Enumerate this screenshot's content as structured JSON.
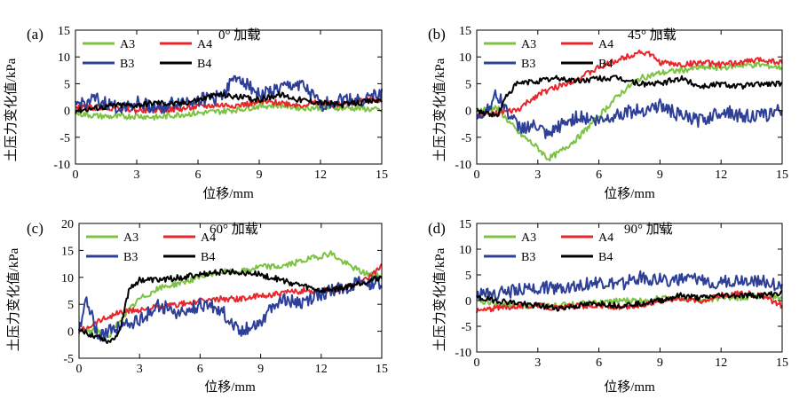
{
  "chart_data": [
    {
      "panel_label": "(a)",
      "title": "0° 加载",
      "type": "line",
      "xlabel": "位移/mm",
      "ylabel": "土压力变化值/kPa",
      "xlim": [
        0,
        15
      ],
      "ylim": [
        -10,
        15
      ],
      "xticks": [
        "0",
        "3",
        "6",
        "9",
        "12",
        "15"
      ],
      "yticks": [
        "-10",
        "-5",
        "0",
        "5",
        "10",
        "15"
      ],
      "legend_columns": 2,
      "grid": false,
      "series": [
        {
          "name": "A3",
          "color": "#7dc243",
          "x": [
            0,
            1,
            2,
            3,
            4,
            5,
            6,
            7,
            8,
            9,
            10,
            11,
            12,
            13,
            14,
            15
          ],
          "y": [
            -0.5,
            -1,
            -1.2,
            -1,
            -1.3,
            -0.8,
            -0.5,
            -0.2,
            0.2,
            0.8,
            1,
            0.5,
            0.5,
            0.5,
            0.4,
            0
          ]
        },
        {
          "name": "A4",
          "color": "#e8262b",
          "x": [
            0,
            1,
            2,
            3,
            4,
            5,
            6,
            7,
            8,
            9,
            10,
            11,
            12,
            13,
            14,
            15
          ],
          "y": [
            0.5,
            0.6,
            0.5,
            0,
            0.2,
            0.2,
            0.7,
            1,
            1,
            1.5,
            1.5,
            1,
            1.5,
            1,
            2,
            2
          ]
        },
        {
          "name": "B3",
          "color": "#2d3f97",
          "x": [
            0,
            1,
            2,
            3,
            4,
            5,
            6,
            7,
            8,
            9,
            10,
            11,
            12,
            13,
            14,
            15
          ],
          "y": [
            1,
            2,
            0.5,
            1.5,
            0.5,
            1.5,
            2,
            2.5,
            6.5,
            3,
            4,
            5,
            1,
            2,
            2,
            3
          ]
        },
        {
          "name": "B4",
          "color": "#000000",
          "x": [
            0,
            1,
            2,
            3,
            4,
            5,
            6,
            7,
            8,
            9,
            10,
            11,
            12,
            13,
            14,
            15
          ],
          "y": [
            0,
            0.5,
            1,
            1,
            1.5,
            1.2,
            2,
            3,
            2.5,
            2,
            3,
            2,
            1.5,
            1,
            1.5,
            2
          ]
        }
      ]
    },
    {
      "panel_label": "(b)",
      "title": "45° 加载",
      "type": "line",
      "xlabel": "位移/mm",
      "ylabel": "土压力变化值/kPa",
      "xlim": [
        0,
        15
      ],
      "ylim": [
        -10,
        15
      ],
      "xticks": [
        "0",
        "3",
        "6",
        "9",
        "12",
        "15"
      ],
      "yticks": [
        "-10",
        "-5",
        "0",
        "5",
        "10",
        "15"
      ],
      "legend_columns": 2,
      "grid": false,
      "series": [
        {
          "name": "A3",
          "color": "#7dc243",
          "x": [
            0,
            1,
            2,
            3,
            3.5,
            4,
            5,
            6,
            7,
            8,
            9,
            10,
            11,
            12,
            13,
            14,
            15
          ],
          "y": [
            0,
            0.5,
            -4,
            -7,
            -9,
            -8,
            -5,
            -1,
            3,
            6,
            7,
            7.5,
            8,
            8,
            8.5,
            8.5,
            8
          ]
        },
        {
          "name": "A4",
          "color": "#e8262b",
          "x": [
            0,
            1,
            2,
            3,
            4,
            5,
            6,
            7,
            8,
            8.5,
            9,
            10,
            11,
            12,
            13,
            14,
            15
          ],
          "y": [
            -1,
            -0.5,
            0,
            3,
            4.5,
            6,
            8,
            9.5,
            11,
            10.5,
            9,
            8.5,
            9,
            8.5,
            9,
            9.5,
            9
          ]
        },
        {
          "name": "B3",
          "color": "#2d3f97",
          "x": [
            0,
            1,
            2,
            3,
            3.5,
            4,
            5,
            6,
            7,
            8,
            9,
            10,
            11,
            12,
            13,
            14,
            15
          ],
          "y": [
            -2,
            3,
            -3,
            -3,
            -5,
            -3,
            -1,
            -2,
            -0.5,
            0,
            1,
            -1,
            -2,
            0,
            -1,
            -1,
            0
          ]
        },
        {
          "name": "B4",
          "color": "#000000",
          "x": [
            0,
            1,
            1.5,
            2,
            3,
            4,
            5,
            6,
            7,
            8,
            9,
            10,
            11,
            12,
            13,
            14,
            15
          ],
          "y": [
            0,
            -1,
            3,
            5,
            5.5,
            6,
            5.5,
            6,
            6,
            5,
            5,
            6,
            4.5,
            5,
            4.5,
            5,
            5
          ]
        }
      ]
    },
    {
      "panel_label": "(c)",
      "title": "60° 加载",
      "type": "line",
      "xlabel": "位移/mm",
      "ylabel": "土压力变化值/kPa",
      "xlim": [
        0,
        15
      ],
      "ylim": [
        -5,
        20
      ],
      "xticks": [
        "0",
        "3",
        "6",
        "9",
        "12",
        "15"
      ],
      "yticks": [
        "-5",
        "0",
        "5",
        "10",
        "15",
        "20"
      ],
      "legend_columns": 2,
      "grid": false,
      "series": [
        {
          "name": "A3",
          "color": "#7dc243",
          "x": [
            0,
            1,
            1.5,
            2,
            3,
            4,
            5,
            6,
            7,
            8,
            9,
            10,
            11,
            12,
            12.5,
            13,
            14,
            15
          ],
          "y": [
            0,
            0,
            -1,
            2,
            6,
            8,
            9,
            10,
            11,
            11,
            12,
            12,
            13,
            14,
            14.5,
            13,
            11,
            10
          ]
        },
        {
          "name": "A4",
          "color": "#e8262b",
          "x": [
            0,
            1,
            2,
            3,
            4,
            5,
            6,
            7,
            8,
            9,
            10,
            11,
            12,
            13,
            14,
            15
          ],
          "y": [
            0,
            2,
            3.5,
            4,
            4.5,
            5,
            5.5,
            6,
            6,
            6.5,
            7,
            7.5,
            7.5,
            8,
            9,
            12
          ]
        },
        {
          "name": "B3",
          "color": "#2d3f97",
          "x": [
            0,
            0.3,
            1,
            2,
            3,
            4,
            5,
            6,
            7,
            8,
            9,
            10,
            11,
            12,
            13,
            14,
            15
          ],
          "y": [
            0,
            6,
            -1,
            1,
            2,
            5,
            3,
            5,
            4,
            0,
            2,
            6,
            5,
            7,
            8,
            9,
            9
          ]
        },
        {
          "name": "B4",
          "color": "#000000",
          "x": [
            0,
            1,
            1.5,
            2,
            2.5,
            3,
            4,
            5,
            6,
            7,
            8,
            9,
            10,
            11,
            12,
            13,
            14,
            15
          ],
          "y": [
            0,
            -1,
            -2,
            0,
            8,
            9.5,
            9.5,
            10,
            10.5,
            11,
            11,
            10.5,
            9.5,
            8.5,
            7.5,
            8,
            9,
            10
          ]
        }
      ]
    },
    {
      "panel_label": "(d)",
      "title": "90° 加载",
      "type": "line",
      "xlabel": "位移/mm",
      "ylabel": "土压力变化值/kPa",
      "xlim": [
        0,
        15
      ],
      "ylim": [
        -10,
        15
      ],
      "xticks": [
        "0",
        "3",
        "6",
        "9",
        "12",
        "15"
      ],
      "yticks": [
        "-10",
        "-5",
        "0",
        "5",
        "10",
        "15"
      ],
      "legend_columns": 2,
      "grid": false,
      "series": [
        {
          "name": "A3",
          "color": "#7dc243",
          "x": [
            0,
            1,
            2,
            3,
            4,
            5,
            6,
            7,
            8,
            9,
            10,
            11,
            12,
            13,
            14,
            15
          ],
          "y": [
            0,
            -0.5,
            -1,
            -1,
            -1,
            -0.5,
            -0.5,
            0,
            0,
            0.5,
            0.5,
            0,
            0.5,
            0.5,
            1,
            0.5
          ]
        },
        {
          "name": "A4",
          "color": "#e8262b",
          "x": [
            0,
            1,
            2,
            3,
            4,
            5,
            6,
            7,
            8,
            9,
            10,
            11,
            12,
            13,
            14,
            15
          ],
          "y": [
            -2,
            -1.5,
            -1,
            -1,
            -1.5,
            -1,
            -1,
            -1.5,
            -1,
            0,
            0.5,
            0,
            1,
            1.5,
            1,
            -1
          ]
        },
        {
          "name": "B3",
          "color": "#2d3f97",
          "x": [
            0,
            1,
            2,
            3,
            4,
            5,
            6,
            7,
            8,
            9,
            10,
            11,
            12,
            13,
            14,
            15
          ],
          "y": [
            1,
            1.5,
            2,
            2.5,
            2.5,
            3,
            3.5,
            3,
            4.5,
            4,
            4,
            4,
            3.5,
            4,
            4,
            2.5
          ]
        },
        {
          "name": "B4",
          "color": "#000000",
          "x": [
            0,
            1,
            2,
            3,
            4,
            5,
            6,
            7,
            8,
            9,
            10,
            11,
            12,
            13,
            14,
            15
          ],
          "y": [
            0.5,
            0,
            -0.5,
            -1,
            -1.5,
            -1,
            -0.5,
            -1,
            -0.5,
            0,
            1,
            0.5,
            1,
            1,
            1,
            1.5
          ]
        }
      ]
    }
  ]
}
